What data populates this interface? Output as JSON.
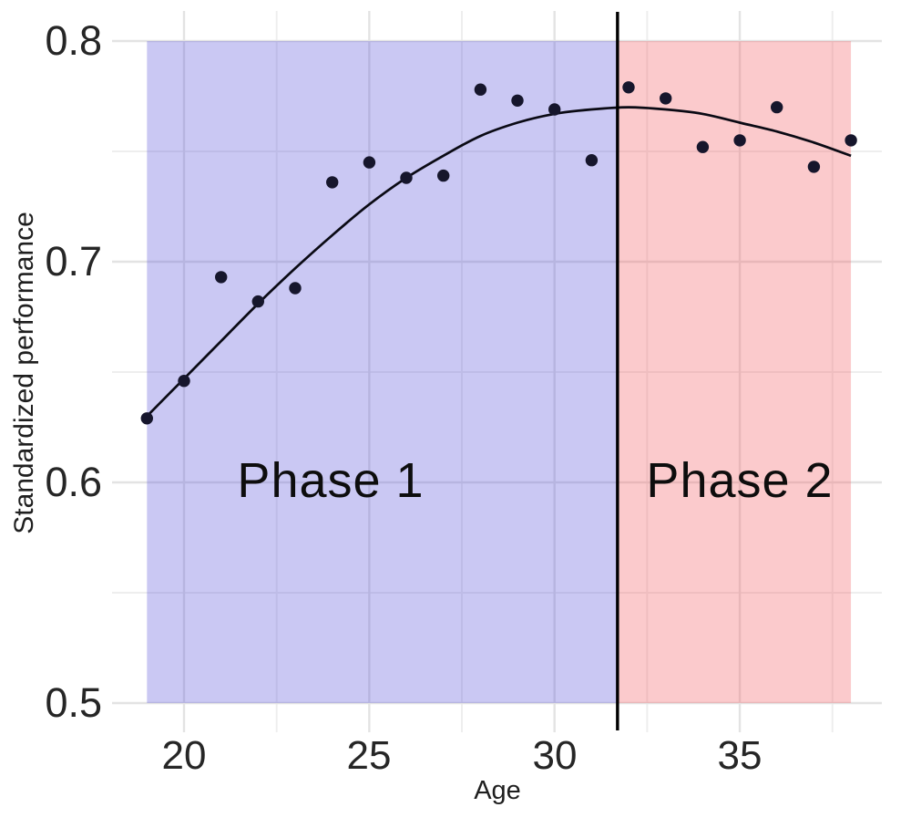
{
  "figure": {
    "y_axis_title": "Standardized performance",
    "x_axis_title": "Age",
    "y_tick_labels": [
      "0.8",
      "0.7",
      "0.6",
      "0.5"
    ],
    "x_tick_labels": [
      "20",
      "25",
      "30",
      "35"
    ],
    "phase1_label": "Phase 1",
    "phase2_label": "Phase 2"
  },
  "chart_data": {
    "type": "scatter",
    "title": "",
    "xlabel": "Age",
    "ylabel": "Standardized performance",
    "xlim": [
      18.06,
      38.84
    ],
    "ylim": [
      0.488,
      0.814
    ],
    "grid": true,
    "legend": "none",
    "x_major_ticks": [
      20,
      25,
      30,
      35
    ],
    "x_minor_ticks": [
      22.5,
      27.5,
      32.5,
      37.5
    ],
    "y_major_ticks": [
      0.8,
      0.7,
      0.6,
      0.5
    ],
    "y_minor_ticks": [
      0.75,
      0.65,
      0.55
    ],
    "points": {
      "x": [
        19,
        20,
        21,
        22,
        23,
        24,
        25,
        26,
        27,
        28,
        29,
        30,
        31,
        32,
        33,
        34,
        35,
        36,
        37,
        38
      ],
      "y": [
        0.629,
        0.646,
        0.693,
        0.682,
        0.688,
        0.736,
        0.745,
        0.738,
        0.739,
        0.778,
        0.773,
        0.769,
        0.746,
        0.779,
        0.774,
        0.752,
        0.755,
        0.77,
        0.743,
        0.755
      ]
    },
    "trend_line": {
      "x": [
        19,
        20,
        21,
        22,
        23,
        24,
        25,
        26,
        27,
        28,
        29,
        30,
        31,
        32,
        33,
        34,
        35,
        36,
        37,
        38
      ],
      "y": [
        0.63,
        0.647,
        0.664,
        0.681,
        0.697,
        0.712,
        0.726,
        0.738,
        0.748,
        0.757,
        0.763,
        0.767,
        0.769,
        0.77,
        0.769,
        0.767,
        0.763,
        0.759,
        0.754,
        0.748
      ]
    },
    "regions": [
      {
        "label": "Phase 1",
        "x_from": 19.0,
        "x_to": 31.7,
        "y_from": 0.5,
        "y_to": 0.8,
        "fill": "#5953D9"
      },
      {
        "label": "Phase 2",
        "x_from": 31.7,
        "x_to": 38.0,
        "y_from": 0.5,
        "y_to": 0.8,
        "fill": "#F25B60"
      }
    ],
    "phase_divider": {
      "x": 31.7
    },
    "colors": {
      "region_alpha": 0.32,
      "point": "#16162C",
      "trend": "#0A0A14",
      "divider": "#000000",
      "grid_major": "#E3E3E3",
      "grid_minor": "#EEEEEE",
      "background": "#FFFFFF"
    }
  }
}
